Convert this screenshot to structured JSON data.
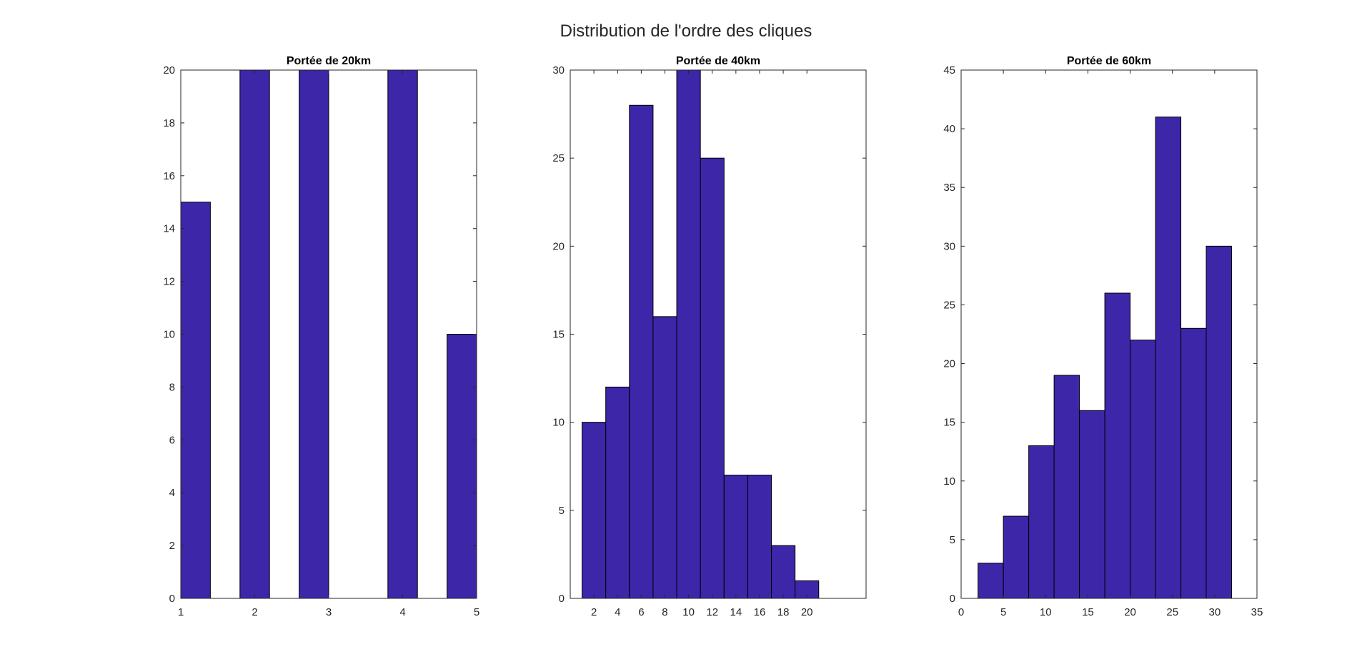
{
  "title": "Distribution de l'ordre des cliques",
  "colors": {
    "bar_fill": "#3d26a8",
    "bar_edge": "#000000",
    "axis": "#262626"
  },
  "chart_data": [
    {
      "type": "bar",
      "title": "Portée de 20km",
      "xlim": [
        1,
        5
      ],
      "ylim": [
        0,
        20
      ],
      "xticks": [
        1,
        2,
        3,
        4,
        5
      ],
      "yticks": [
        0,
        2,
        4,
        6,
        8,
        10,
        12,
        14,
        16,
        18,
        20
      ],
      "bin_edges": [
        1,
        1.4,
        1.8,
        2.2,
        2.6,
        3.0,
        3.4,
        3.8,
        4.2,
        4.6,
        5.0
      ],
      "values": [
        15,
        0,
        20,
        0,
        20,
        0,
        0,
        20,
        0,
        10
      ],
      "grid": false
    },
    {
      "type": "bar",
      "title": "Portée de 40km",
      "xlim": [
        0,
        25
      ],
      "ylim": [
        0,
        30
      ],
      "xticks": [
        2,
        4,
        6,
        8,
        10,
        12,
        14,
        16,
        18,
        20
      ],
      "yticks": [
        0,
        5,
        10,
        15,
        20,
        25,
        30
      ],
      "bin_edges": [
        1,
        3,
        5,
        7,
        9,
        11,
        13,
        15,
        17,
        19,
        21
      ],
      "values": [
        10,
        12,
        28,
        16,
        30,
        25,
        7,
        7,
        3,
        1
      ],
      "grid": false
    },
    {
      "type": "bar",
      "title": "Portée de 60km",
      "xlim": [
        0,
        35
      ],
      "ylim": [
        0,
        45
      ],
      "xticks": [
        0,
        5,
        10,
        15,
        20,
        25,
        30,
        35
      ],
      "yticks": [
        0,
        5,
        10,
        15,
        20,
        25,
        30,
        35,
        40,
        45
      ],
      "bin_edges": [
        2,
        5,
        8,
        11,
        14,
        17,
        20,
        23,
        26,
        29,
        32
      ],
      "values": [
        3,
        7,
        13,
        19,
        16,
        26,
        22,
        41,
        23,
        30
      ],
      "grid": false
    }
  ]
}
